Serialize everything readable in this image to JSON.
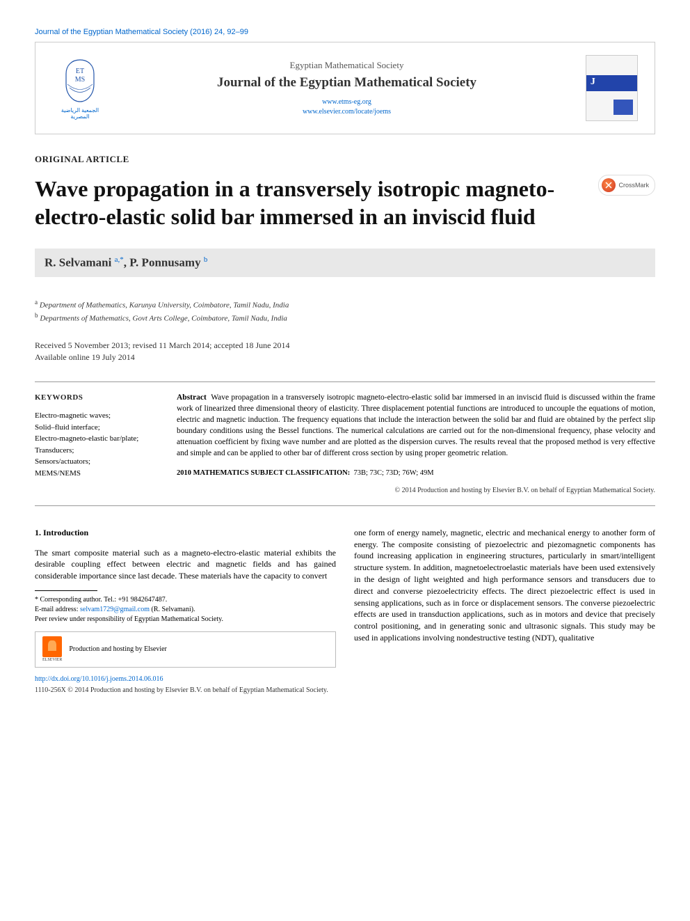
{
  "running_header": "Journal of the Egyptian Mathematical Society (2016) 24, 92–99",
  "header": {
    "society": "Egyptian Mathematical Society",
    "journal": "Journal of the Egyptian Mathematical Society",
    "link1": "www.etms-eg.org",
    "link2": "www.elsevier.com/locate/joems",
    "logo_initials": "ET MS",
    "logo_arabic": "الجمعية الرياضية المصرية"
  },
  "article_type": "ORIGINAL ARTICLE",
  "title": "Wave propagation in a transversely isotropic magneto-electro-elastic solid bar immersed in an inviscid fluid",
  "crossmark_label": "CrossMark",
  "authors_html": "R. Selvamani <sup>a,*</sup>, P. Ponnusamy <sup>b</sup>",
  "affiliations": [
    {
      "sup": "a",
      "text": "Department of Mathematics, Karunya University, Coimbatore, Tamil Nadu, India"
    },
    {
      "sup": "b",
      "text": "Departments of Mathematics, Govt Arts College, Coimbatore, Tamil Nadu, India"
    }
  ],
  "dates": {
    "received": "Received 5 November 2013; revised 11 March 2014; accepted 18 June 2014",
    "online": "Available online 19 July 2014"
  },
  "keywords": {
    "heading": "KEYWORDS",
    "items": "Electro-magnetic waves;\nSolid–fluid interface;\nElectro-magneto-elastic bar/plate;\nTransducers;\nSensors/actuators;\nMEMS/NEMS"
  },
  "abstract": {
    "label": "Abstract",
    "text": "Wave propagation in a transversely isotropic magneto-electro-elastic solid bar immersed in an inviscid fluid is discussed within the frame work of linearized three dimensional theory of elasticity. Three displacement potential functions are introduced to uncouple the equations of motion, electric and magnetic induction. The frequency equations that include the interaction between the solid bar and fluid are obtained by the perfect slip boundary conditions using the Bessel functions. The numerical calculations are carried out for the non-dimensional frequency, phase velocity and attenuation coefficient by fixing wave number and are plotted as the dispersion curves. The results reveal that the proposed method is very effective and simple and can be applied to other bar of different cross section by using proper geometric relation."
  },
  "classification": {
    "label": "2010 MATHEMATICS SUBJECT CLASSIFICATION:",
    "codes": "73B; 73C; 73D; 76W; 49M"
  },
  "copyright_abstract": "© 2014 Production and hosting by Elsevier B.V. on behalf of Egyptian Mathematical Society.",
  "body": {
    "section_heading": "1. Introduction",
    "col1_para": "The smart composite material such as a magneto-electro-elastic material exhibits the desirable coupling effect between electric and magnetic fields and has gained considerable importance since last decade. These materials have the capacity to convert",
    "col2_para": "one form of energy namely, magnetic, electric and mechanical energy to another form of energy. The composite consisting of piezoelectric and piezomagnetic components has found increasing application in engineering structures, particularly in smart/intelligent structure system. In addition, magnetoelectroelastic materials have been used extensively in the design of light weighted and high performance sensors and transducers due to direct and converse piezoelectricity effects. The direct piezoelectric effect is used in sensing applications, such as in force or displacement sensors. The converse piezoelectric effects are used in transduction applications, such as in motors and device that precisely control positioning, and in generating sonic and ultrasonic signals. This study may be used in applications involving nondestructive testing (NDT), qualitative"
  },
  "footnotes": {
    "corresponding": "* Corresponding author. Tel.: +91 9842647487.",
    "email_label": "E-mail address:",
    "email": "selvam1729@gmail.com",
    "email_author": "(R. Selvamani).",
    "peer_review": "Peer review under responsibility of Egyptian Mathematical Society."
  },
  "hosting_text": "Production and hosting by Elsevier",
  "elsevier_label": "ELSEVIER",
  "doi": "http://dx.doi.org/10.1016/j.joems.2014.06.016",
  "issn_line": "1110-256X © 2014 Production and hosting by Elsevier B.V. on behalf of Egyptian Mathematical Society.",
  "colors": {
    "link": "#0066cc",
    "author_bar_bg": "#e8e8e8",
    "border": "#cccccc",
    "cover_blue": "#2244aa"
  }
}
